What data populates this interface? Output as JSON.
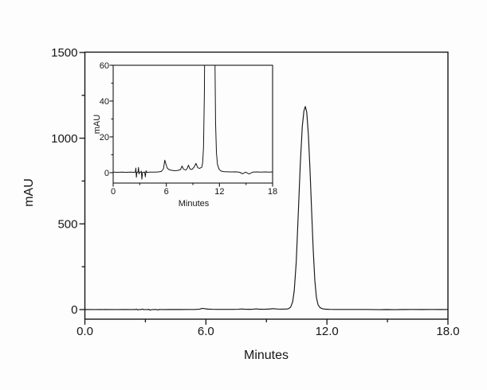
{
  "figure": {
    "background_color": "#fdfdfd",
    "ink_color": "#161616",
    "description": "HPLC chromatogram with inset zoom of the same trace"
  },
  "chart_data": [
    {
      "id": "main",
      "type": "line",
      "title": "",
      "xlabel": "Minutes",
      "ylabel": "mAU",
      "xlim": [
        0,
        18
      ],
      "ylim": [
        -56,
        1502
      ],
      "grid": false,
      "legend": null,
      "x_ticks": [
        {
          "v": 0,
          "label": "0.0"
        },
        {
          "v": 6,
          "label": "6.0"
        },
        {
          "v": 12,
          "label": "12.0"
        },
        {
          "v": 18,
          "label": "18.0"
        }
      ],
      "x_minor_ticks": [
        3,
        9,
        15
      ],
      "y_ticks": [
        {
          "v": 0,
          "label": "0"
        },
        {
          "v": 500,
          "label": "500"
        },
        {
          "v": 1000,
          "label": "1000"
        },
        {
          "v": 1500,
          "label": "1500"
        }
      ],
      "y_minor_ticks": [
        250,
        750,
        1250
      ],
      "series": [
        {
          "name": "hplc-absorbance-trace",
          "color": "#161616",
          "points": [
            [
              0,
              0.3
            ],
            [
              0.5,
              0.2
            ],
            [
              1,
              0.3
            ],
            [
              1.5,
              0.2
            ],
            [
              2,
              0.3
            ],
            [
              2.35,
              0.2
            ],
            [
              2.5,
              0.3
            ],
            [
              2.56,
              2.6
            ],
            [
              2.62,
              -2.6
            ],
            [
              2.68,
              0.2
            ],
            [
              2.8,
              0.3
            ],
            [
              2.86,
              2.9
            ],
            [
              2.92,
              -0.7
            ],
            [
              2.98,
              0.2
            ],
            [
              3.12,
              0.3
            ],
            [
              3.18,
              0.9
            ],
            [
              3.24,
              -3.6
            ],
            [
              3.32,
              0.2
            ],
            [
              3.56,
              0.3
            ],
            [
              3.63,
              -2.3
            ],
            [
              3.71,
              1.1
            ],
            [
              3.79,
              0.2
            ],
            [
              4.2,
              0.3
            ],
            [
              4.7,
              0.3
            ],
            [
              5.1,
              0.4
            ],
            [
              5.45,
              0.7
            ],
            [
              5.68,
              2.2
            ],
            [
              5.83,
              7.0
            ],
            [
              5.96,
              4.8
            ],
            [
              6.1,
              2.6
            ],
            [
              6.3,
              1.7
            ],
            [
              6.6,
              1.3
            ],
            [
              7.0,
              1.1
            ],
            [
              7.35,
              1.3
            ],
            [
              7.6,
              1.7
            ],
            [
              7.78,
              3.7
            ],
            [
              7.95,
              1.9
            ],
            [
              8.2,
              1.5
            ],
            [
              8.35,
              2.3
            ],
            [
              8.5,
              4.2
            ],
            [
              8.68,
              2.0
            ],
            [
              8.9,
              1.8
            ],
            [
              9.15,
              3.2
            ],
            [
              9.35,
              5.2
            ],
            [
              9.55,
              2.8
            ],
            [
              9.75,
              2.4
            ],
            [
              9.9,
              2.8
            ],
            [
              10.0,
              3.0
            ],
            [
              10.1,
              5.5
            ],
            [
              10.2,
              14
            ],
            [
              10.3,
              45
            ],
            [
              10.38,
              110
            ],
            [
              10.48,
              280
            ],
            [
              10.58,
              560
            ],
            [
              10.68,
              850
            ],
            [
              10.78,
              1070
            ],
            [
              10.86,
              1160
            ],
            [
              10.93,
              1185
            ],
            [
              11.0,
              1150
            ],
            [
              11.08,
              1020
            ],
            [
              11.16,
              820
            ],
            [
              11.24,
              580
            ],
            [
              11.32,
              350
            ],
            [
              11.4,
              170
            ],
            [
              11.48,
              70
            ],
            [
              11.56,
              28
            ],
            [
              11.66,
              11
            ],
            [
              11.78,
              4.5
            ],
            [
              11.95,
              2
            ],
            [
              12.15,
              1
            ],
            [
              12.45,
              0.6
            ],
            [
              12.9,
              0.5
            ],
            [
              13.4,
              0.4
            ],
            [
              13.9,
              0.5
            ],
            [
              14.3,
              0.2
            ],
            [
              14.6,
              -0.6
            ],
            [
              14.95,
              0.3
            ],
            [
              15.35,
              -0.7
            ],
            [
              15.75,
              0.3
            ],
            [
              16.2,
              0.4
            ],
            [
              16.7,
              0.3
            ],
            [
              17.2,
              0.4
            ],
            [
              17.6,
              0.3
            ],
            [
              18,
              0.4
            ]
          ]
        }
      ]
    },
    {
      "id": "inset",
      "type": "line",
      "title": "",
      "xlabel": "Minutes",
      "ylabel": "mAU",
      "xlim": [
        0,
        18
      ],
      "ylim": [
        -5.8,
        60
      ],
      "grid": false,
      "legend": null,
      "x_ticks": [
        {
          "v": 0,
          "label": "0"
        },
        {
          "v": 6,
          "label": "6"
        },
        {
          "v": 12,
          "label": "12"
        },
        {
          "v": 18,
          "label": "18"
        }
      ],
      "x_minor_ticks": [
        3,
        9,
        15
      ],
      "y_ticks": [
        {
          "v": 0,
          "label": "0"
        },
        {
          "v": 20,
          "label": "20"
        },
        {
          "v": 40,
          "label": "40"
        },
        {
          "v": 60,
          "label": "60"
        }
      ],
      "y_minor_ticks": [
        10,
        30,
        50
      ],
      "series_source": 0
    }
  ]
}
